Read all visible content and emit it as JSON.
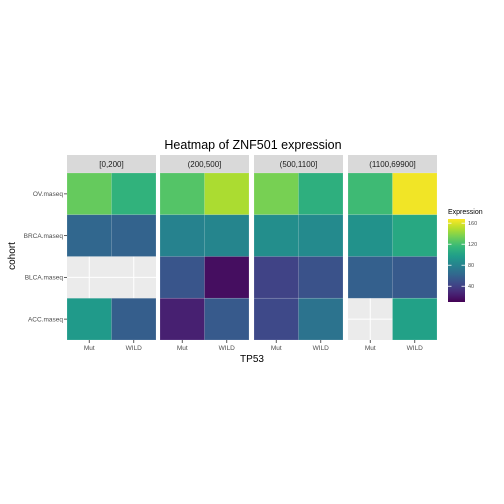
{
  "chart_data": {
    "type": "heatmap",
    "title": "Heatmap of ZNF501 expression",
    "xlabel": "TP53",
    "ylabel": "cohort",
    "x_categories": [
      "Mut",
      "WILD"
    ],
    "y_categories": [
      "OV.maseq",
      "BRCA.maseq",
      "BLCA.maseq",
      "ACC.maseq"
    ],
    "facets": [
      {
        "label": "[0,200]",
        "cells": [
          {
            "y": "OV.maseq",
            "x": "Mut",
            "value": 130
          },
          {
            "y": "OV.maseq",
            "x": "WILD",
            "value": 112
          },
          {
            "y": "BRCA.maseq",
            "x": "Mut",
            "value": 62
          },
          {
            "y": "BRCA.maseq",
            "x": "WILD",
            "value": 60
          },
          {
            "y": "ACC.maseq",
            "x": "Mut",
            "value": 95
          },
          {
            "y": "ACC.maseq",
            "x": "WILD",
            "value": 57
          }
        ]
      },
      {
        "label": "(200,500]",
        "cells": [
          {
            "y": "OV.maseq",
            "x": "Mut",
            "value": 125
          },
          {
            "y": "OV.maseq",
            "x": "WILD",
            "value": 148
          },
          {
            "y": "BRCA.maseq",
            "x": "Mut",
            "value": 80
          },
          {
            "y": "BRCA.maseq",
            "x": "WILD",
            "value": 82
          },
          {
            "y": "BLCA.maseq",
            "x": "Mut",
            "value": 52
          },
          {
            "y": "BLCA.maseq",
            "x": "WILD",
            "value": 16
          },
          {
            "y": "ACC.maseq",
            "x": "Mut",
            "value": 24
          },
          {
            "y": "ACC.maseq",
            "x": "WILD",
            "value": 55
          }
        ]
      },
      {
        "label": "(500,1100]",
        "cells": [
          {
            "y": "OV.maseq",
            "x": "Mut",
            "value": 135
          },
          {
            "y": "OV.maseq",
            "x": "WILD",
            "value": 110
          },
          {
            "y": "BRCA.maseq",
            "x": "Mut",
            "value": 88
          },
          {
            "y": "BRCA.maseq",
            "x": "WILD",
            "value": 85
          },
          {
            "y": "BLCA.maseq",
            "x": "Mut",
            "value": 42
          },
          {
            "y": "BLCA.maseq",
            "x": "WILD",
            "value": 50
          },
          {
            "y": "ACC.maseq",
            "x": "Mut",
            "value": 45
          },
          {
            "y": "ACC.maseq",
            "x": "WILD",
            "value": 70
          }
        ]
      },
      {
        "label": "(1100,69900]",
        "cells": [
          {
            "y": "OV.maseq",
            "x": "Mut",
            "value": 118
          },
          {
            "y": "OV.maseq",
            "x": "WILD",
            "value": 165
          },
          {
            "y": "BRCA.maseq",
            "x": "Mut",
            "value": 90
          },
          {
            "y": "BRCA.maseq",
            "x": "WILD",
            "value": 105
          },
          {
            "y": "BLCA.maseq",
            "x": "Mut",
            "value": 58
          },
          {
            "y": "BLCA.maseq",
            "x": "WILD",
            "value": 55
          },
          {
            "y": "ACC.maseq",
            "x": "WILD",
            "value": 100
          }
        ]
      }
    ],
    "legend": {
      "title": "Expression",
      "ticks": [
        40,
        80,
        120,
        160
      ],
      "range": [
        10,
        168
      ],
      "placement": "right"
    },
    "colorscale": "viridis",
    "grid": true
  }
}
